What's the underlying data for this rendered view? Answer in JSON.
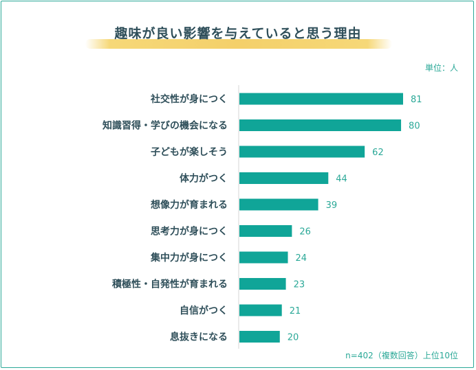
{
  "title": "趣味が良い影響を与えていると思う理由",
  "unit_label": "単位：人",
  "footnote": "n=402（複数回答）上位10位",
  "colors": {
    "bar": "#10a598",
    "frame": "#2aa897",
    "title_highlight": "#f4d06a",
    "label": "#2f4f5a"
  },
  "chart_data": {
    "type": "bar",
    "orientation": "horizontal",
    "title": "趣味が良い影響を与えていると思う理由",
    "xlabel": "",
    "ylabel": "",
    "categories": [
      "社交性が身につく",
      "知識習得・学びの機会になる",
      "子どもが楽しそう",
      "体力がつく",
      "想像力が育まれる",
      "思考力が身につく",
      "集中力が身につく",
      "積極性・自発性が育まれる",
      "自信がつく",
      "息抜きになる"
    ],
    "values": [
      81,
      80,
      62,
      44,
      39,
      26,
      24,
      23,
      21,
      20
    ],
    "xlim": [
      0,
      100
    ],
    "grid": false,
    "legend": "none"
  }
}
